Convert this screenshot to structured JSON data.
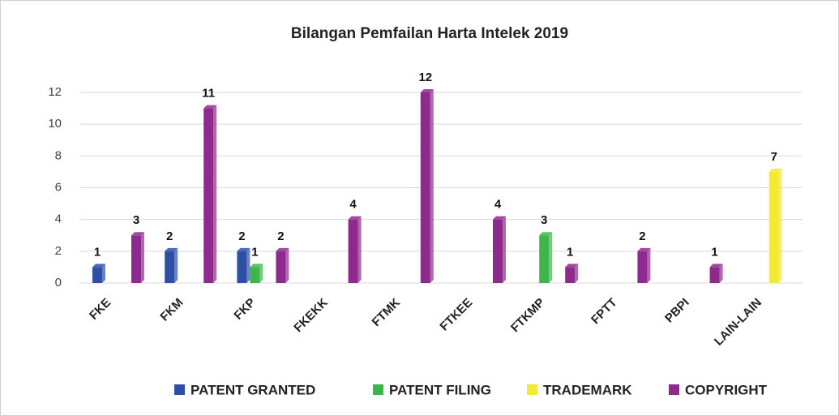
{
  "chart_data": {
    "type": "bar",
    "title": "Bilangan Pemfailan Harta Intelek 2019",
    "categories": [
      "FKE",
      "FKM",
      "FKP",
      "FKEKK",
      "FTMK",
      "FTKEE",
      "FTKMP",
      "FPTT",
      "PBPI",
      "LAIN-LAIN"
    ],
    "series": [
      {
        "name": "PATENT GRANTED",
        "color": "#2e4fa6",
        "values": [
          1,
          2,
          2,
          null,
          null,
          null,
          null,
          null,
          null,
          null
        ]
      },
      {
        "name": "PATENT FILING",
        "color": "#3cb54a",
        "values": [
          null,
          null,
          1,
          null,
          null,
          null,
          3,
          null,
          null,
          null
        ]
      },
      {
        "name": "TRADEMARK",
        "color": "#f2ea33",
        "values": [
          null,
          null,
          null,
          null,
          null,
          null,
          null,
          null,
          null,
          7
        ]
      },
      {
        "name": "COPYRIGHT",
        "color": "#8e2a8e",
        "values": [
          3,
          11,
          2,
          4,
          12,
          4,
          1,
          2,
          1,
          null
        ]
      }
    ],
    "ylim": [
      0,
      12
    ],
    "yticks": [
      0,
      2,
      4,
      6,
      8,
      10,
      12
    ],
    "grid": true,
    "legend": "bottom"
  }
}
